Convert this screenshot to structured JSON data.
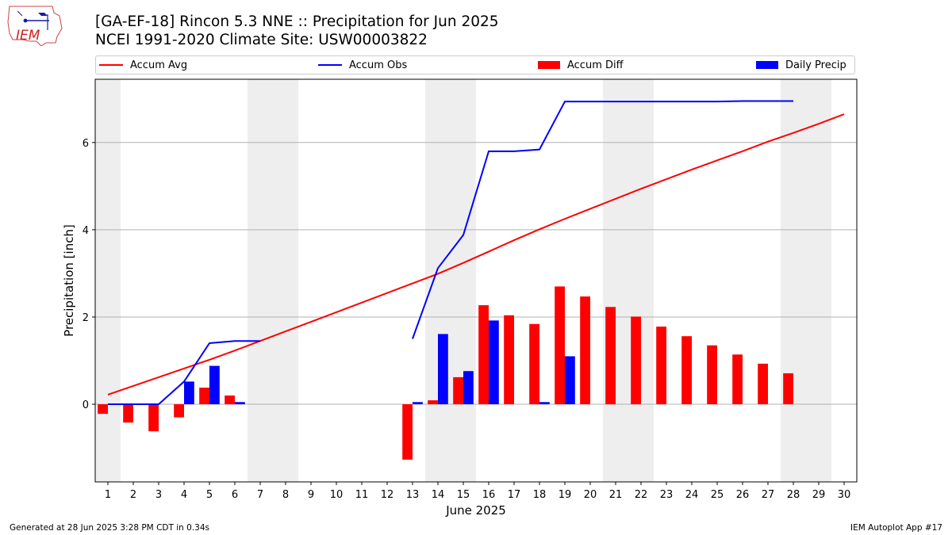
{
  "title_line1": "[GA-EF-18] Rincon 5.3 NNE :: Precipitation for Jun 2025",
  "title_line2": "NCEI 1991-2020 Climate Site: USW00003822",
  "logo_text": "IEM",
  "footer_left": "Generated at 28 Jun 2025 3:28 PM CDT in 0.34s",
  "footer_right": "IEM Autoplot App #17",
  "chart_data": {
    "type": "bar",
    "xlabel": "June 2025",
    "ylabel": "Precipitation [inch]",
    "xlim": [
      0.5,
      30.5
    ],
    "ylim": [
      -1.78,
      7.45
    ],
    "yticks": [
      0,
      2,
      4,
      6
    ],
    "x": [
      1,
      2,
      3,
      4,
      5,
      6,
      7,
      8,
      9,
      10,
      11,
      12,
      13,
      14,
      15,
      16,
      17,
      18,
      19,
      20,
      21,
      22,
      23,
      24,
      25,
      26,
      27,
      28,
      29,
      30
    ],
    "weekend_shading": [
      [
        1,
        1
      ],
      [
        7,
        8
      ],
      [
        14,
        15
      ],
      [
        21,
        22
      ],
      [
        28,
        29
      ]
    ],
    "grid": "horizontal",
    "legend_position": "top",
    "series": [
      {
        "name": "Accum Avg",
        "kind": "line",
        "color": "#ff0000",
        "x": [
          1,
          2,
          3,
          4,
          5,
          6,
          7,
          8,
          9,
          10,
          11,
          12,
          13,
          14,
          15,
          16,
          17,
          18,
          19,
          20,
          21,
          22,
          23,
          24,
          25,
          26,
          27,
          28,
          29,
          30
        ],
        "values": [
          0.22,
          0.42,
          0.62,
          0.82,
          1.02,
          1.23,
          1.45,
          1.67,
          1.89,
          2.11,
          2.33,
          2.55,
          2.77,
          2.99,
          3.24,
          3.5,
          3.76,
          4.01,
          4.25,
          4.48,
          4.71,
          4.94,
          5.16,
          5.38,
          5.59,
          5.8,
          6.02,
          6.22,
          6.43,
          6.65
        ]
      },
      {
        "name": "Accum Obs",
        "kind": "line",
        "color": "#0000ff",
        "segments": [
          {
            "x": [
              1,
              2,
              3,
              4,
              5,
              6,
              7
            ],
            "values": [
              0.0,
              0.0,
              0.0,
              0.52,
              1.4,
              1.45,
              1.45
            ]
          },
          {
            "x": [
              13,
              14,
              15,
              16,
              17,
              18,
              19,
              20,
              21,
              22,
              23,
              24,
              25,
              26,
              27,
              28
            ],
            "values": [
              1.5,
              3.12,
              3.88,
              5.8,
              5.8,
              5.84,
              6.94,
              6.94,
              6.94,
              6.94,
              6.94,
              6.94,
              6.94,
              6.95,
              6.95,
              6.95
            ]
          }
        ]
      },
      {
        "name": "Accum Diff",
        "kind": "bar",
        "color": "#ff0000",
        "x": [
          1,
          2,
          3,
          4,
          5,
          6,
          13,
          14,
          15,
          16,
          17,
          18,
          19,
          20,
          21,
          22,
          23,
          24,
          25,
          26,
          27,
          28
        ],
        "values": [
          -0.22,
          -0.42,
          -0.62,
          -0.3,
          0.38,
          0.2,
          -1.27,
          0.09,
          0.62,
          2.27,
          2.04,
          1.84,
          2.7,
          2.47,
          2.23,
          2.01,
          1.78,
          1.56,
          1.35,
          1.14,
          0.93,
          0.71
        ]
      },
      {
        "name": "Daily Precip",
        "kind": "bar",
        "color": "#0000ff",
        "x": [
          4,
          5,
          6,
          13,
          14,
          15,
          16,
          18,
          19
        ],
        "values": [
          0.52,
          0.88,
          0.05,
          0.05,
          1.61,
          0.76,
          1.92,
          0.05,
          1.1
        ]
      }
    ]
  }
}
